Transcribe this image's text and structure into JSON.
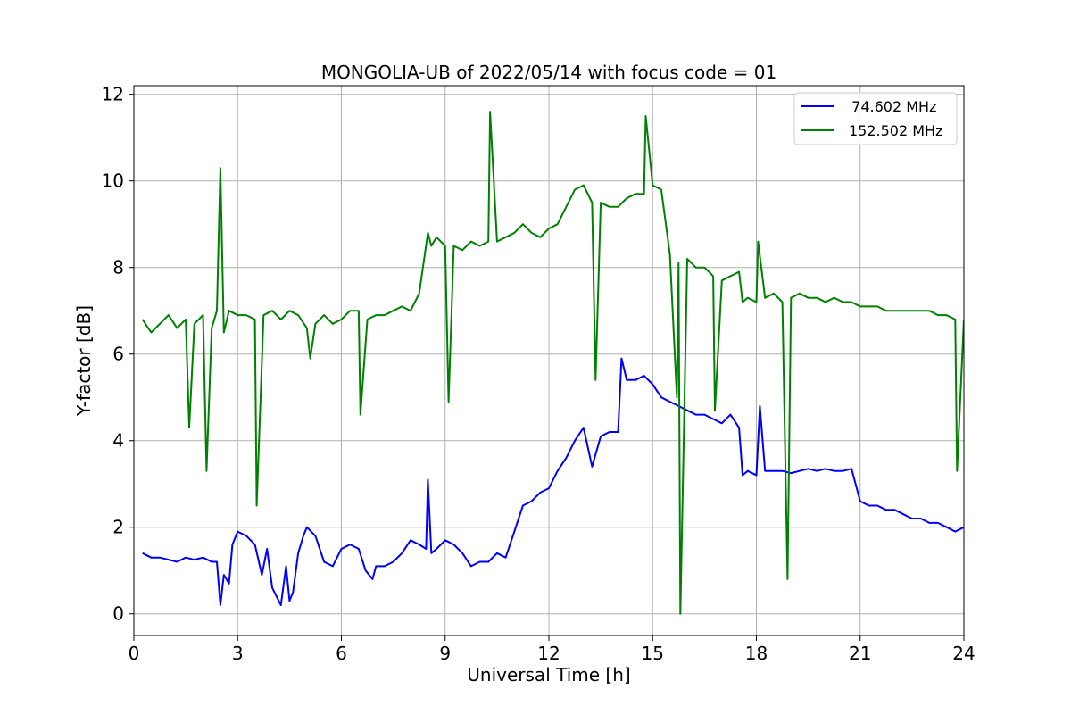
{
  "chart_data": {
    "type": "line",
    "title": "MONGOLIA-UB of 2022/05/14 with focus code = 01",
    "xlabel": "Universal Time [h]",
    "ylabel": "Y-factor [dB]",
    "xlim": [
      0,
      24
    ],
    "ylim": [
      -0.5,
      12.2
    ],
    "xticks": [
      0,
      3,
      6,
      9,
      12,
      15,
      18,
      21,
      24
    ],
    "yticks": [
      0,
      2,
      4,
      6,
      8,
      10,
      12
    ],
    "grid": true,
    "legend_position": "top-right",
    "series": [
      {
        "name": "  74.602 MHz",
        "color": "#0000ff",
        "x": [
          0.25,
          0.5,
          0.75,
          1.0,
          1.25,
          1.5,
          1.75,
          2.0,
          2.25,
          2.4,
          2.5,
          2.6,
          2.75,
          2.85,
          3.0,
          3.25,
          3.5,
          3.7,
          3.85,
          4.0,
          4.25,
          4.4,
          4.5,
          4.6,
          4.75,
          4.9,
          5.0,
          5.25,
          5.5,
          5.75,
          6.0,
          6.25,
          6.5,
          6.7,
          6.9,
          7.0,
          7.25,
          7.5,
          7.75,
          8.0,
          8.25,
          8.45,
          8.5,
          8.6,
          8.75,
          9.0,
          9.25,
          9.5,
          9.75,
          10.0,
          10.25,
          10.5,
          10.75,
          11.0,
          11.25,
          11.5,
          11.75,
          12.0,
          12.25,
          12.5,
          12.75,
          13.0,
          13.25,
          13.5,
          13.75,
          14.0,
          14.1,
          14.25,
          14.5,
          14.75,
          15.0,
          15.25,
          15.5,
          15.75,
          16.0,
          16.25,
          16.5,
          16.75,
          17.0,
          17.25,
          17.5,
          17.6,
          17.75,
          18.0,
          18.1,
          18.25,
          18.5,
          18.75,
          19.0,
          19.25,
          19.5,
          19.75,
          20.0,
          20.25,
          20.5,
          20.75,
          21.0,
          21.25,
          21.5,
          21.75,
          22.0,
          22.25,
          22.5,
          22.75,
          23.0,
          23.25,
          23.5,
          23.75,
          24.0
        ],
        "values": [
          1.4,
          1.3,
          1.3,
          1.25,
          1.2,
          1.3,
          1.25,
          1.3,
          1.2,
          1.2,
          0.2,
          0.9,
          0.7,
          1.6,
          1.9,
          1.8,
          1.6,
          0.9,
          1.5,
          0.6,
          0.2,
          1.1,
          0.3,
          0.5,
          1.4,
          1.8,
          2.0,
          1.8,
          1.2,
          1.1,
          1.5,
          1.6,
          1.5,
          1.0,
          0.8,
          1.1,
          1.1,
          1.2,
          1.4,
          1.7,
          1.6,
          1.5,
          3.1,
          1.4,
          1.5,
          1.7,
          1.6,
          1.4,
          1.1,
          1.2,
          1.2,
          1.4,
          1.3,
          1.9,
          2.5,
          2.6,
          2.8,
          2.9,
          3.3,
          3.6,
          4.0,
          4.3,
          3.4,
          4.1,
          4.2,
          4.2,
          5.9,
          5.4,
          5.4,
          5.5,
          5.3,
          5.0,
          4.9,
          4.8,
          4.7,
          4.6,
          4.6,
          4.5,
          4.4,
          4.6,
          4.3,
          3.2,
          3.3,
          3.2,
          4.8,
          3.3,
          3.3,
          3.3,
          3.25,
          3.3,
          3.35,
          3.3,
          3.35,
          3.3,
          3.3,
          3.35,
          2.6,
          2.5,
          2.5,
          2.4,
          2.4,
          2.3,
          2.2,
          2.2,
          2.1,
          2.1,
          2.0,
          1.9,
          2.0
        ]
      },
      {
        "name": "152.502 MHz",
        "color": "#008000",
        "x": [
          0.25,
          0.5,
          0.75,
          1.0,
          1.25,
          1.5,
          1.6,
          1.75,
          2.0,
          2.1,
          2.25,
          2.4,
          2.5,
          2.6,
          2.75,
          3.0,
          3.25,
          3.5,
          3.55,
          3.75,
          4.0,
          4.25,
          4.5,
          4.75,
          5.0,
          5.1,
          5.25,
          5.5,
          5.75,
          6.0,
          6.25,
          6.5,
          6.55,
          6.75,
          7.0,
          7.25,
          7.5,
          7.75,
          8.0,
          8.25,
          8.5,
          8.6,
          8.75,
          9.0,
          9.1,
          9.25,
          9.5,
          9.75,
          10.0,
          10.25,
          10.3,
          10.5,
          10.75,
          11.0,
          11.25,
          11.5,
          11.75,
          12.0,
          12.25,
          12.5,
          12.75,
          13.0,
          13.25,
          13.35,
          13.5,
          13.75,
          14.0,
          14.25,
          14.5,
          14.75,
          14.8,
          15.0,
          15.25,
          15.5,
          15.7,
          15.75,
          15.8,
          16.0,
          16.25,
          16.5,
          16.75,
          16.8,
          17.0,
          17.25,
          17.5,
          17.6,
          17.75,
          18.0,
          18.05,
          18.25,
          18.5,
          18.75,
          18.9,
          19.0,
          19.25,
          19.5,
          19.75,
          20.0,
          20.25,
          20.5,
          20.75,
          21.0,
          21.25,
          21.5,
          21.75,
          22.0,
          22.25,
          22.5,
          22.75,
          23.0,
          23.25,
          23.5,
          23.75,
          23.8,
          24.0
        ],
        "values": [
          6.8,
          6.5,
          6.7,
          6.9,
          6.6,
          6.8,
          4.3,
          6.7,
          6.9,
          3.3,
          6.6,
          7.0,
          10.3,
          6.5,
          7.0,
          6.9,
          6.9,
          6.8,
          2.5,
          6.9,
          7.0,
          6.8,
          7.0,
          6.9,
          6.6,
          5.9,
          6.7,
          6.9,
          6.7,
          6.8,
          7.0,
          7.0,
          4.6,
          6.8,
          6.9,
          6.9,
          7.0,
          7.1,
          7.0,
          7.4,
          8.8,
          8.5,
          8.7,
          8.5,
          4.9,
          8.5,
          8.4,
          8.6,
          8.5,
          8.6,
          11.6,
          8.6,
          8.7,
          8.8,
          9.0,
          8.8,
          8.7,
          8.9,
          9.0,
          9.4,
          9.8,
          9.9,
          9.5,
          5.4,
          9.5,
          9.4,
          9.4,
          9.6,
          9.7,
          9.7,
          11.5,
          9.9,
          9.8,
          8.3,
          5.0,
          8.1,
          0.0,
          8.2,
          8.0,
          8.0,
          7.8,
          4.7,
          7.7,
          7.8,
          7.9,
          7.2,
          7.3,
          7.2,
          8.6,
          7.3,
          7.4,
          7.2,
          0.8,
          7.3,
          7.4,
          7.3,
          7.3,
          7.2,
          7.3,
          7.2,
          7.2,
          7.1,
          7.1,
          7.1,
          7.0,
          7.0,
          7.0,
          7.0,
          7.0,
          7.0,
          6.9,
          6.9,
          6.8,
          3.3,
          6.8
        ]
      }
    ]
  }
}
